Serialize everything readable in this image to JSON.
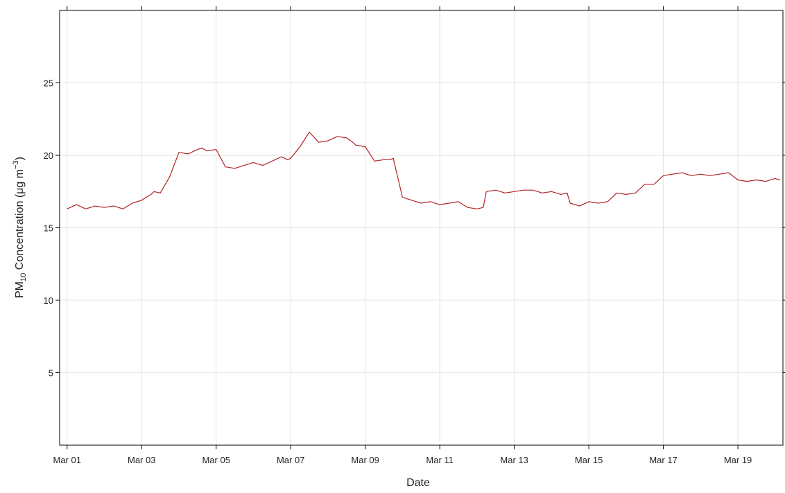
{
  "chart_data": {
    "type": "line",
    "xlabel": "Date",
    "ylabel": {
      "prefix": "PM",
      "sub": "10",
      "middle": " Concentration (",
      "mu": "μ",
      "unit_mid": "g m",
      "sup": "−3",
      "suffix": ")"
    },
    "xlim": [
      "2024-02-29T19:12",
      "2024-03-20T05:00"
    ],
    "ylim": [
      0,
      30
    ],
    "grid": true,
    "x_ticks": [
      {
        "date": "2024-03-01",
        "label": "Mar 01"
      },
      {
        "date": "2024-03-03",
        "label": "Mar 03"
      },
      {
        "date": "2024-03-05",
        "label": "Mar 05"
      },
      {
        "date": "2024-03-07",
        "label": "Mar 07"
      },
      {
        "date": "2024-03-09",
        "label": "Mar 09"
      },
      {
        "date": "2024-03-11",
        "label": "Mar 11"
      },
      {
        "date": "2024-03-13",
        "label": "Mar 13"
      },
      {
        "date": "2024-03-15",
        "label": "Mar 15"
      },
      {
        "date": "2024-03-17",
        "label": "Mar 17"
      },
      {
        "date": "2024-03-19",
        "label": "Mar 19"
      }
    ],
    "y_ticks": [
      {
        "value": 5,
        "label": "5"
      },
      {
        "value": 10,
        "label": "10"
      },
      {
        "value": 15,
        "label": "15"
      },
      {
        "value": 20,
        "label": "20"
      },
      {
        "value": 25,
        "label": "25"
      }
    ],
    "series": [
      {
        "color": "#b22222",
        "x": [
          "2024-03-01T00:00",
          "2024-03-01T06:00",
          "2024-03-01T12:00",
          "2024-03-01T18:00",
          "2024-03-02T00:00",
          "2024-03-02T06:00",
          "2024-03-02T12:00",
          "2024-03-02T18:00",
          "2024-03-03T00:00",
          "2024-03-03T06:00",
          "2024-03-03T08:00",
          "2024-03-03T12:00",
          "2024-03-03T18:00",
          "2024-03-04T00:00",
          "2024-03-04T06:00",
          "2024-03-04T12:00",
          "2024-03-04T15:00",
          "2024-03-04T18:00",
          "2024-03-05T00:00",
          "2024-03-05T06:00",
          "2024-03-05T12:00",
          "2024-03-05T18:00",
          "2024-03-06T00:00",
          "2024-03-06T06:00",
          "2024-03-06T12:00",
          "2024-03-06T18:00",
          "2024-03-06T22:00",
          "2024-03-07T00:00",
          "2024-03-07T06:00",
          "2024-03-07T12:00",
          "2024-03-07T18:00",
          "2024-03-08T00:00",
          "2024-03-08T06:00",
          "2024-03-08T12:00",
          "2024-03-08T16:00",
          "2024-03-08T18:00",
          "2024-03-09T00:00",
          "2024-03-09T06:00",
          "2024-03-09T12:00",
          "2024-03-09T16:00",
          "2024-03-09T18:00",
          "2024-03-10T00:00",
          "2024-03-10T06:00",
          "2024-03-10T12:00",
          "2024-03-10T18:00",
          "2024-03-11T00:00",
          "2024-03-11T06:00",
          "2024-03-11T12:00",
          "2024-03-11T18:00",
          "2024-03-12T00:00",
          "2024-03-12T04:00",
          "2024-03-12T06:00",
          "2024-03-12T12:00",
          "2024-03-12T18:00",
          "2024-03-13T00:00",
          "2024-03-13T06:00",
          "2024-03-13T12:00",
          "2024-03-13T18:00",
          "2024-03-14T00:00",
          "2024-03-14T06:00",
          "2024-03-14T10:00",
          "2024-03-14T12:00",
          "2024-03-14T18:00",
          "2024-03-15T00:00",
          "2024-03-15T06:00",
          "2024-03-15T12:00",
          "2024-03-15T18:00",
          "2024-03-16T00:00",
          "2024-03-16T06:00",
          "2024-03-16T12:00",
          "2024-03-16T18:00",
          "2024-03-17T00:00",
          "2024-03-17T06:00",
          "2024-03-17T12:00",
          "2024-03-17T18:00",
          "2024-03-18T00:00",
          "2024-03-18T06:00",
          "2024-03-18T12:00",
          "2024-03-18T18:00",
          "2024-03-19T00:00",
          "2024-03-19T06:00",
          "2024-03-19T12:00",
          "2024-03-19T18:00",
          "2024-03-20T00:00",
          "2024-03-20T03:00"
        ],
        "y": [
          16.3,
          16.6,
          16.3,
          16.5,
          16.4,
          16.5,
          16.3,
          16.7,
          16.9,
          17.3,
          17.5,
          17.4,
          18.5,
          20.2,
          20.1,
          20.4,
          20.5,
          20.3,
          20.4,
          19.2,
          19.1,
          19.3,
          19.5,
          19.3,
          19.6,
          19.9,
          19.7,
          19.8,
          20.6,
          21.6,
          20.9,
          21.0,
          21.3,
          21.2,
          20.9,
          20.7,
          20.6,
          19.6,
          19.7,
          19.7,
          19.8,
          17.1,
          16.9,
          16.7,
          16.8,
          16.6,
          16.7,
          16.8,
          16.4,
          16.3,
          16.4,
          17.5,
          17.6,
          17.4,
          17.5,
          17.6,
          17.6,
          17.4,
          17.5,
          17.3,
          17.4,
          16.7,
          16.5,
          16.8,
          16.7,
          16.8,
          17.4,
          17.3,
          17.4,
          18.0,
          18.0,
          18.6,
          18.7,
          18.8,
          18.6,
          18.7,
          18.6,
          18.7,
          18.8,
          18.3,
          18.2,
          18.3,
          18.2,
          18.4,
          18.3
        ]
      }
    ]
  }
}
